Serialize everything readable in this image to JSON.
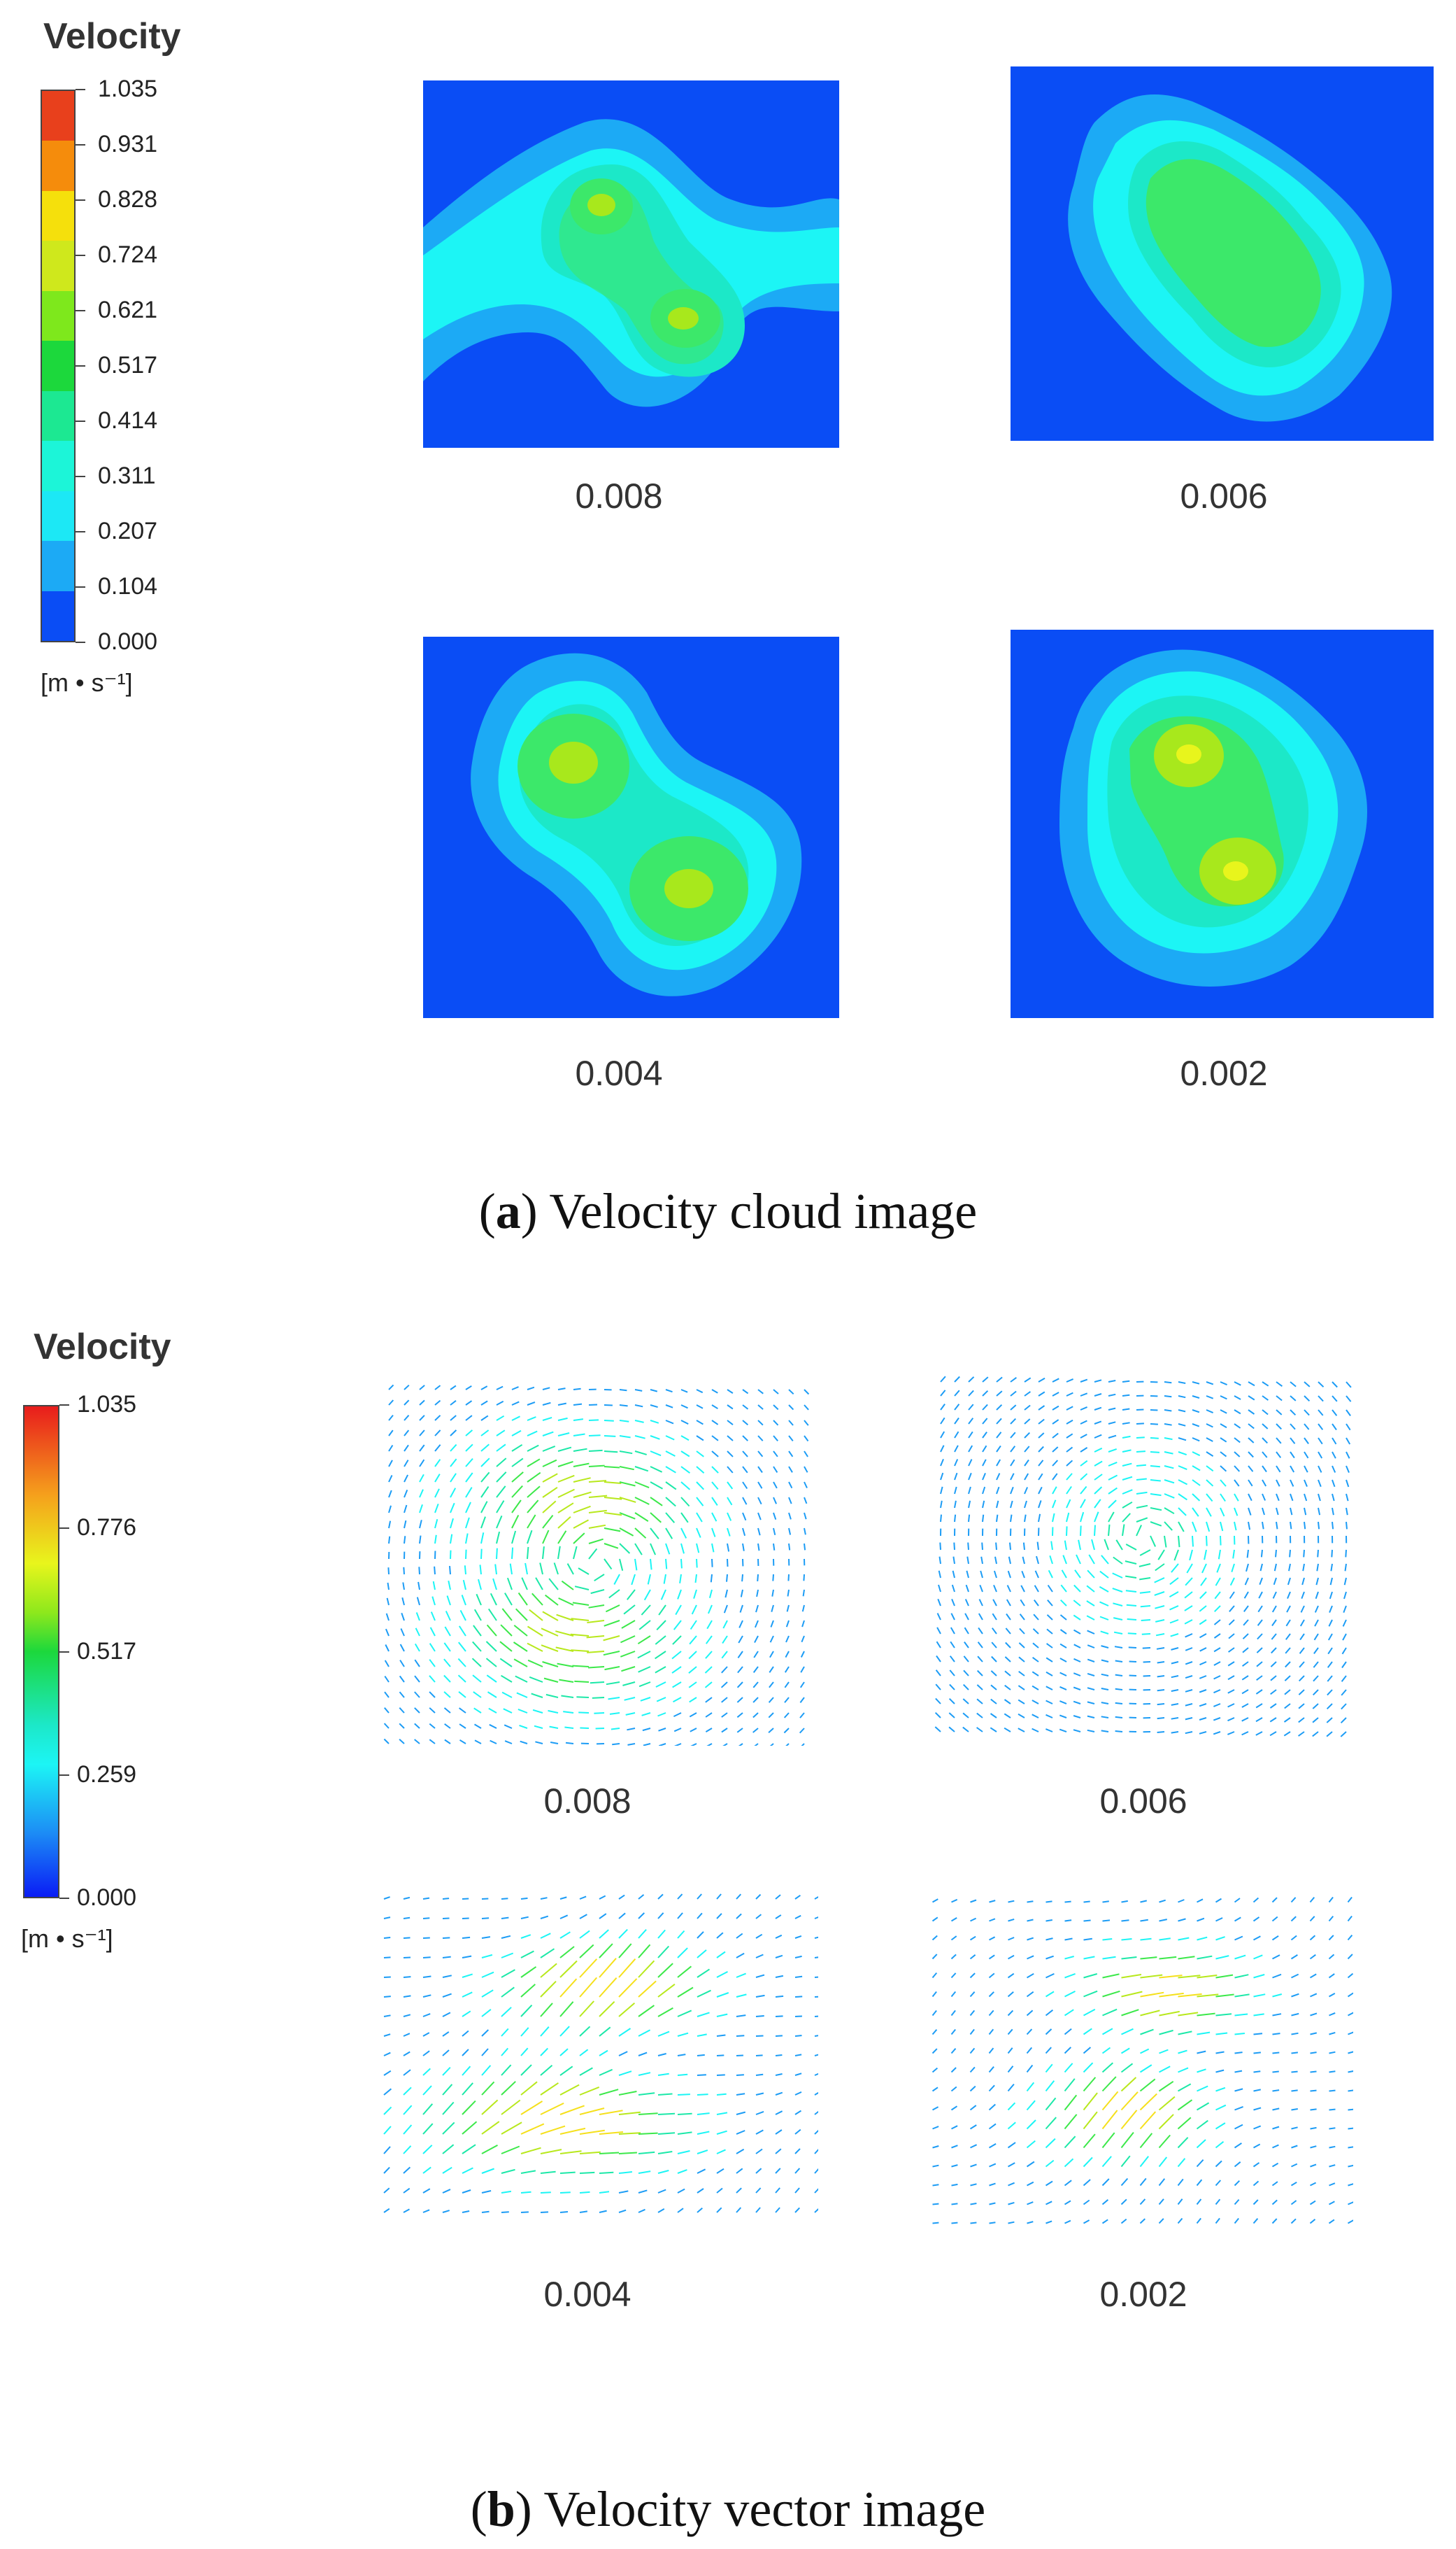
{
  "figure_a": {
    "legend": {
      "title": "Velocity",
      "ticks": [
        "1.035",
        "0.931",
        "0.828",
        "0.724",
        "0.621",
        "0.517",
        "0.414",
        "0.311",
        "0.207",
        "0.104",
        "0.000"
      ],
      "bands": [
        "#e8401c",
        "#f58c0c",
        "#f5e00c",
        "#cfe81c",
        "#7ee81c",
        "#1cd83c",
        "#1ce892",
        "#1cf5d8",
        "#1ce8f5",
        "#1caaf5",
        "#0a4df5"
      ],
      "unit": "[m • s⁻¹]"
    },
    "panels": [
      {
        "label": "0.008"
      },
      {
        "label": "0.006"
      },
      {
        "label": "0.004"
      },
      {
        "label": "0.002"
      }
    ],
    "caption_letter": "a",
    "caption_text": "Velocity cloud image"
  },
  "figure_b": {
    "legend": {
      "title": "Velocity",
      "ticks": [
        "1.035",
        "0.776",
        "0.517",
        "0.259",
        "0.000"
      ],
      "unit": "[m • s⁻¹]"
    },
    "panels": [
      {
        "label": "0.008"
      },
      {
        "label": "0.006"
      },
      {
        "label": "0.004"
      },
      {
        "label": "0.002"
      }
    ],
    "caption_letter": "b",
    "caption_text": "Velocity vector image"
  },
  "colors": {
    "background_blue": "#0a4df5",
    "low": "#1caaf5",
    "cyan": "#1cf5f5",
    "aqua": "#1ce8c8",
    "green": "#3ce86a",
    "lime": "#a8e81c",
    "yellow": "#e8f51c"
  }
}
